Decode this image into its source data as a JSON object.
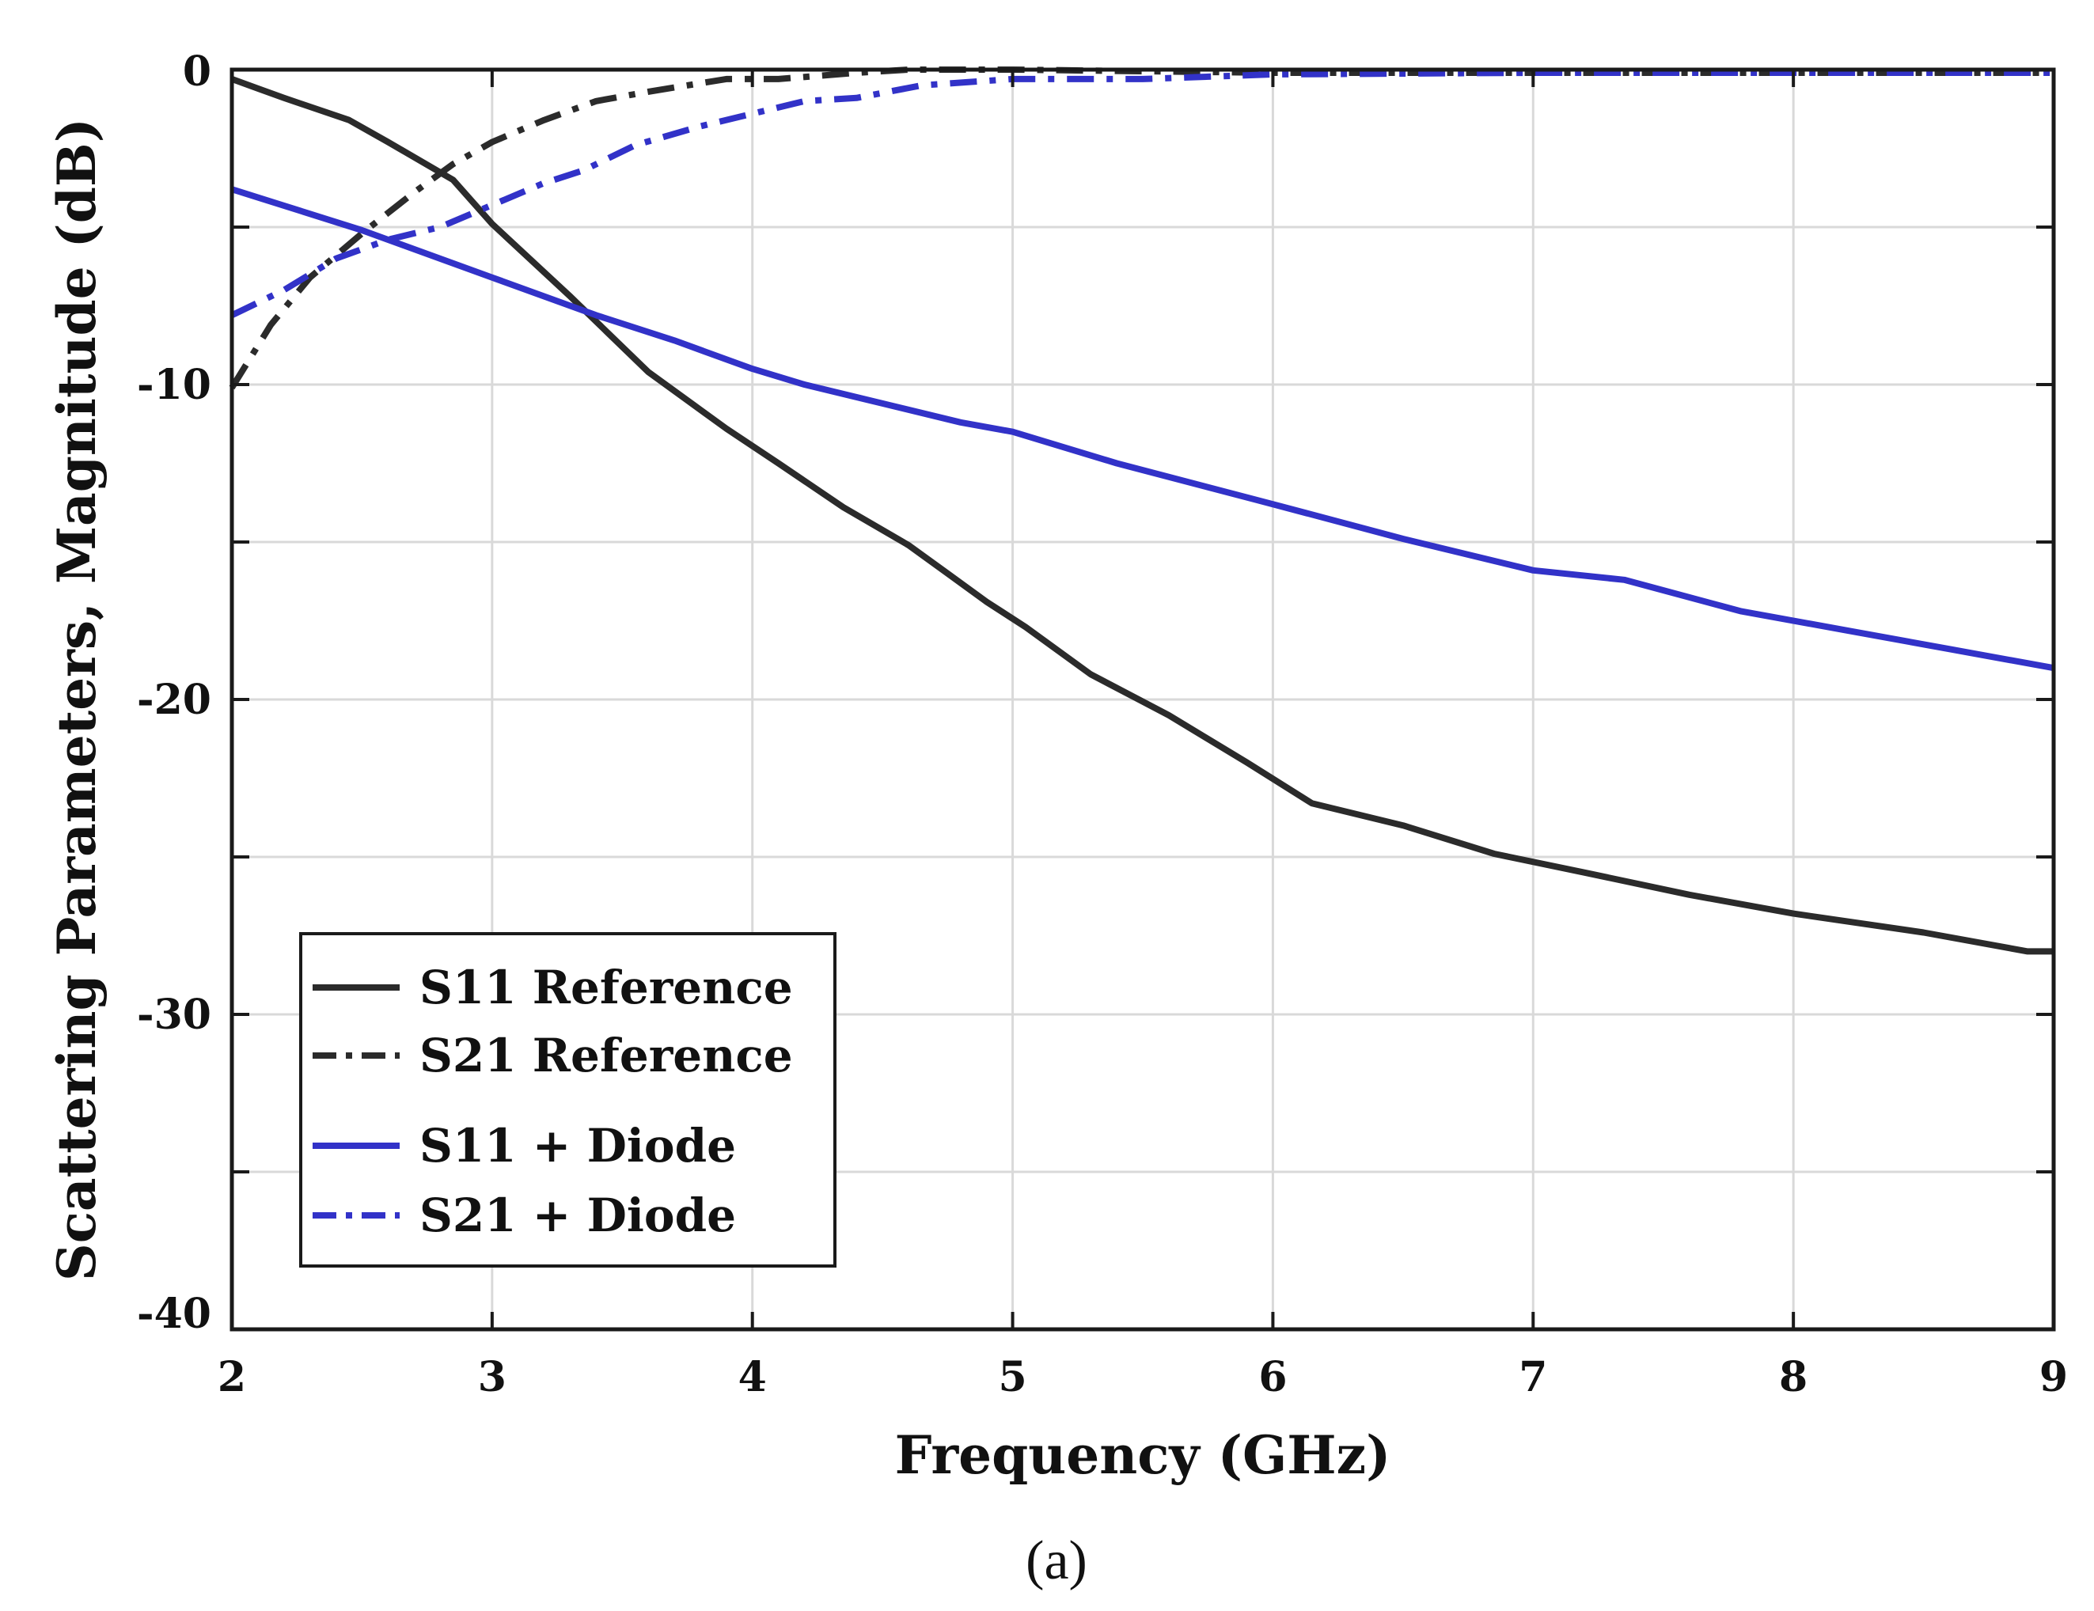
{
  "chart_data": {
    "type": "line",
    "title": "",
    "xlabel": "Frequency (GHz)",
    "ylabel": "Scattering Parameters, Magnitude (dB)",
    "xlim": [
      2,
      9
    ],
    "ylim": [
      -40,
      0
    ],
    "xticks": [
      2,
      3,
      4,
      5,
      6,
      7,
      8,
      9
    ],
    "xtick_labels": [
      "2",
      "3",
      "4",
      "5",
      "6",
      "7",
      "8",
      "9"
    ],
    "yticks": [
      0,
      -5,
      -10,
      -15,
      -20,
      -25,
      -30,
      -35,
      -40
    ],
    "ytick_labels": [
      "0",
      "",
      "-10",
      "",
      "-20",
      "",
      "-30",
      "",
      "-40"
    ],
    "grid": true,
    "legend_position": "bottom-left",
    "caption": "(a)",
    "series": [
      {
        "name": "S11 Reference",
        "color": "#2b2b2b",
        "dash": "solid",
        "x": [
          2.0,
          2.1,
          2.2,
          2.45,
          2.6,
          2.85,
          3.0,
          3.3,
          3.6,
          3.9,
          4.1,
          4.35,
          4.6,
          4.75,
          4.9,
          5.05,
          5.3,
          5.6,
          5.9,
          6.15,
          6.5,
          6.85,
          7.2,
          7.6,
          8.0,
          8.5,
          8.9,
          9.0
        ],
        "y": [
          -0.3,
          -0.6,
          -0.9,
          -1.6,
          -2.3,
          -3.5,
          -4.9,
          -7.2,
          -9.6,
          -11.4,
          -12.5,
          -13.9,
          -15.1,
          -16.0,
          -16.9,
          -17.7,
          -19.2,
          -20.5,
          -22.0,
          -23.3,
          -24.0,
          -24.9,
          -25.5,
          -26.2,
          -26.8,
          -27.4,
          -28.0,
          -28.0
        ]
      },
      {
        "name": "S21 Reference",
        "color": "#2b2b2b",
        "dash": "dashdot",
        "x": [
          2.0,
          2.15,
          2.3,
          2.5,
          2.7,
          2.85,
          3.0,
          3.2,
          3.4,
          3.6,
          3.9,
          4.1,
          4.4,
          4.6,
          5.0,
          5.5,
          6.0,
          7.0,
          8.0,
          9.0
        ],
        "y": [
          -10.1,
          -8.1,
          -6.6,
          -5.2,
          -3.9,
          -3.0,
          -2.3,
          -1.6,
          -1.0,
          -0.7,
          -0.3,
          -0.3,
          -0.1,
          0.0,
          0.0,
          -0.05,
          -0.1,
          -0.1,
          -0.1,
          -0.1
        ]
      },
      {
        "name": "S11 + Diode",
        "color": "#3232c8",
        "dash": "solid",
        "x": [
          2.0,
          2.5,
          3.0,
          3.4,
          3.7,
          4.0,
          4.2,
          4.5,
          4.8,
          5.0,
          5.4,
          6.0,
          6.5,
          7.0,
          7.35,
          7.8,
          8.2,
          8.6,
          9.0
        ],
        "y": [
          -3.8,
          -5.1,
          -6.6,
          -7.8,
          -8.6,
          -9.5,
          -10.0,
          -10.6,
          -11.2,
          -11.5,
          -12.5,
          -13.8,
          -14.9,
          -15.9,
          -16.2,
          -17.2,
          -17.8,
          -18.4,
          -19.0
        ]
      },
      {
        "name": "S21 + Diode",
        "color": "#3232c8",
        "dash": "dashdot",
        "x": [
          2.0,
          2.2,
          2.4,
          2.6,
          2.8,
          3.0,
          3.2,
          3.35,
          3.55,
          3.8,
          4.0,
          4.2,
          4.4,
          4.65,
          5.0,
          5.5,
          6.0,
          7.0,
          8.0,
          9.0
        ],
        "y": [
          -7.8,
          -7.0,
          -6.0,
          -5.4,
          -5.0,
          -4.3,
          -3.6,
          -3.2,
          -2.4,
          -1.8,
          -1.4,
          -1.0,
          -0.9,
          -0.5,
          -0.3,
          -0.3,
          -0.15,
          -0.1,
          -0.1,
          -0.1
        ]
      }
    ]
  }
}
